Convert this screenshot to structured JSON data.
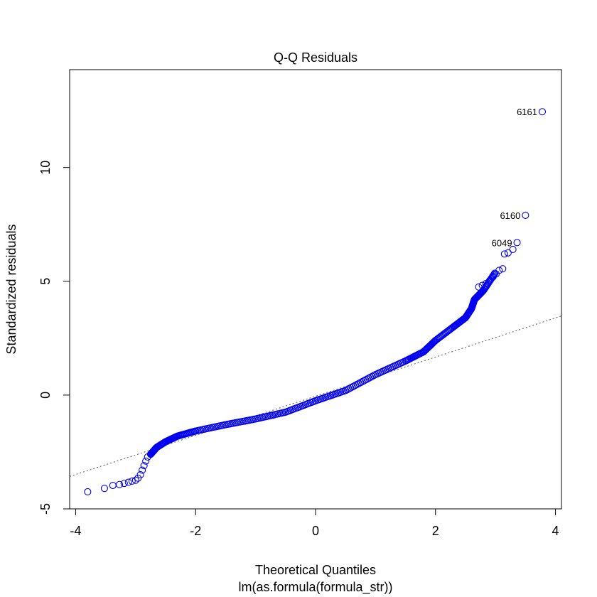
{
  "chart_data": {
    "type": "scatter",
    "title": "Q-Q Residuals",
    "xlabel": "Theoretical Quantiles",
    "sublabel": "lm(as.formula(formula_str))",
    "ylabel": "Standardized residuals",
    "xlim": [
      -4.1,
      4.1
    ],
    "ylim": [
      -5,
      14.3
    ],
    "x_ticks": [
      -4,
      -2,
      0,
      2,
      4
    ],
    "y_ticks": [
      -5,
      0,
      5,
      10
    ],
    "x_tick_labels": [
      "-4",
      "-2",
      "0",
      "2",
      "4"
    ],
    "y_tick_labels": [
      "-5",
      "0",
      "5",
      "10"
    ],
    "grid": false,
    "reference_line": {
      "style": "dotted",
      "color": "#555555",
      "intercept": -0.05,
      "slope": 0.86
    },
    "point_color": "#0000ee",
    "point_style": "open-circle",
    "curve": [
      [
        -2.75,
        -2.6
      ],
      [
        -2.65,
        -2.3
      ],
      [
        -2.5,
        -2.05
      ],
      [
        -2.3,
        -1.8
      ],
      [
        -2.0,
        -1.58
      ],
      [
        -1.5,
        -1.3
      ],
      [
        -1.0,
        -1.05
      ],
      [
        -0.5,
        -0.75
      ],
      [
        0.0,
        -0.25
      ],
      [
        0.5,
        0.2
      ],
      [
        1.0,
        0.9
      ],
      [
        1.5,
        1.5
      ],
      [
        1.8,
        1.9
      ],
      [
        2.0,
        2.4
      ],
      [
        2.3,
        3.0
      ],
      [
        2.5,
        3.4
      ],
      [
        2.6,
        3.8
      ],
      [
        2.65,
        4.2
      ],
      [
        2.8,
        4.6
      ],
      [
        3.0,
        5.4
      ]
    ],
    "lower_tail_points": [
      [
        -3.8,
        -4.25
      ],
      [
        -3.52,
        -4.1
      ],
      [
        -3.38,
        -3.97
      ],
      [
        -3.27,
        -3.93
      ],
      [
        -3.19,
        -3.88
      ],
      [
        -3.12,
        -3.83
      ],
      [
        -3.06,
        -3.78
      ],
      [
        -3.0,
        -3.74
      ],
      [
        -2.96,
        -3.65
      ],
      [
        -2.92,
        -3.5
      ],
      [
        -2.89,
        -3.3
      ],
      [
        -2.86,
        -3.1
      ],
      [
        -2.83,
        -2.9
      ],
      [
        -2.8,
        -2.72
      ]
    ],
    "upper_tail_points": [
      [
        2.72,
        4.75
      ],
      [
        2.78,
        4.82
      ],
      [
        2.84,
        4.9
      ],
      [
        2.9,
        5.02
      ],
      [
        2.96,
        5.2
      ],
      [
        3.01,
        5.32
      ],
      [
        3.06,
        5.48
      ],
      [
        3.12,
        5.55
      ],
      [
        3.15,
        6.2
      ],
      [
        3.21,
        6.25
      ],
      [
        3.29,
        6.4
      ],
      [
        3.36,
        6.7
      ],
      [
        3.5,
        7.9
      ],
      [
        3.78,
        12.45
      ]
    ],
    "annotations": [
      {
        "label": "6161",
        "x": 3.78,
        "y": 12.45
      },
      {
        "label": "6160",
        "x": 3.5,
        "y": 7.9
      },
      {
        "label": "6049",
        "x": 3.36,
        "y": 6.7
      }
    ]
  }
}
